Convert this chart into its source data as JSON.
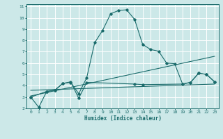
{
  "xlabel": "Humidex (Indice chaleur)",
  "bg_color": "#cce8e8",
  "grid_color": "#ffffff",
  "line_color": "#1a6b6b",
  "xlim": [
    -0.5,
    23.5
  ],
  "ylim": [
    2,
    11.2
  ],
  "xticks": [
    0,
    1,
    2,
    3,
    4,
    5,
    6,
    7,
    8,
    9,
    10,
    11,
    12,
    13,
    14,
    15,
    16,
    17,
    18,
    19,
    20,
    21,
    22,
    23
  ],
  "yticks": [
    2,
    3,
    4,
    5,
    6,
    7,
    8,
    9,
    10,
    11
  ],
  "series1_x": [
    0,
    1,
    2,
    3,
    4,
    5,
    6,
    7,
    8,
    9,
    10,
    11,
    12,
    13,
    14,
    15,
    16,
    17,
    18,
    19,
    20,
    21,
    22,
    23
  ],
  "series1_y": [
    3.0,
    2.1,
    3.5,
    3.6,
    4.2,
    4.3,
    3.3,
    4.7,
    7.8,
    8.9,
    10.35,
    10.65,
    10.7,
    9.85,
    7.65,
    7.2,
    7.05,
    6.0,
    5.95,
    4.15,
    4.3,
    5.1,
    5.0,
    4.35
  ],
  "series2_x": [
    0,
    23
  ],
  "series2_y": [
    3.1,
    6.6
  ],
  "series3_x": [
    0,
    23
  ],
  "series3_y": [
    3.6,
    4.15
  ],
  "series4_x": [
    0,
    2,
    3,
    4,
    5,
    6,
    7,
    13,
    14,
    19,
    20,
    21,
    22,
    23
  ],
  "series4_y": [
    3.0,
    3.5,
    3.6,
    4.2,
    4.35,
    2.9,
    4.3,
    4.15,
    4.1,
    4.15,
    4.3,
    5.1,
    5.0,
    4.35
  ]
}
